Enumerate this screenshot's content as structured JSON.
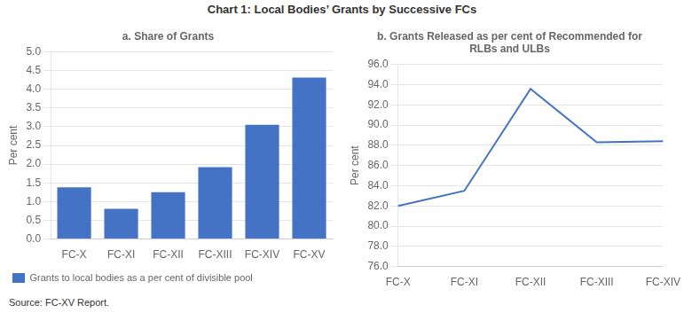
{
  "title": "Chart 1: Local Bodies’ Grants by Successive FCs",
  "annotations": [
    "Source: FC-XV Report."
  ],
  "chart_data": [
    {
      "type": "bar",
      "title": "a. Share of Grants",
      "categories": [
        "FC-X",
        "FC-XI",
        "FC-XII",
        "FC-XIII",
        "FC-XIV",
        "FC-XV"
      ],
      "series": [
        {
          "name": "Grants to local bodies as a per cent of divisible pool",
          "color": "#4472c4",
          "values": [
            1.38,
            0.81,
            1.25,
            1.92,
            3.05,
            4.31
          ]
        }
      ],
      "ylabel": "Per cent",
      "ylim": [
        0,
        5.0
      ],
      "yticks": [
        {
          "value": 0.0,
          "label": "0.0"
        },
        0.5,
        {
          "value": 1.0,
          "label": "1.0"
        },
        1.5,
        {
          "value": 2.0,
          "label": "2.0"
        },
        2.5,
        {
          "value": 3.0,
          "label": "3.0"
        },
        3.5,
        {
          "value": 4.0,
          "label": "4.0"
        },
        4.5,
        {
          "value": 5.0,
          "label": "5.0"
        }
      ],
      "grid": true,
      "legend": "bottom"
    },
    {
      "type": "line",
      "title": "b. Grants Released as per cent of Recommended for\nRLBs and ULBs",
      "categories": [
        "FC-X",
        "FC-XI",
        "FC-XII",
        "FC-XIII",
        "FC-XIV"
      ],
      "values": [
        82.0,
        83.5,
        93.6,
        88.3,
        88.4
      ],
      "color": "#4472c4",
      "ylabel": "Per cent",
      "ylim": [
        76.0,
        96.0
      ],
      "yticks": [
        {
          "value": 76.0,
          "label": "76.0"
        },
        {
          "value": 78.0,
          "label": "78.0"
        },
        {
          "value": 80.0,
          "label": "80.0"
        },
        {
          "value": 82.0,
          "label": "82.0"
        },
        {
          "value": 84.0,
          "label": "84.0"
        },
        {
          "value": 86.0,
          "label": "86.0"
        },
        {
          "value": 88.0,
          "label": "88.0"
        },
        {
          "value": 90.0,
          "label": "90.0"
        },
        {
          "value": 92.0,
          "label": "92.0"
        },
        {
          "value": 94.0,
          "label": "94.0"
        },
        {
          "value": 96.0,
          "label": "96.0"
        }
      ],
      "grid": true
    }
  ]
}
